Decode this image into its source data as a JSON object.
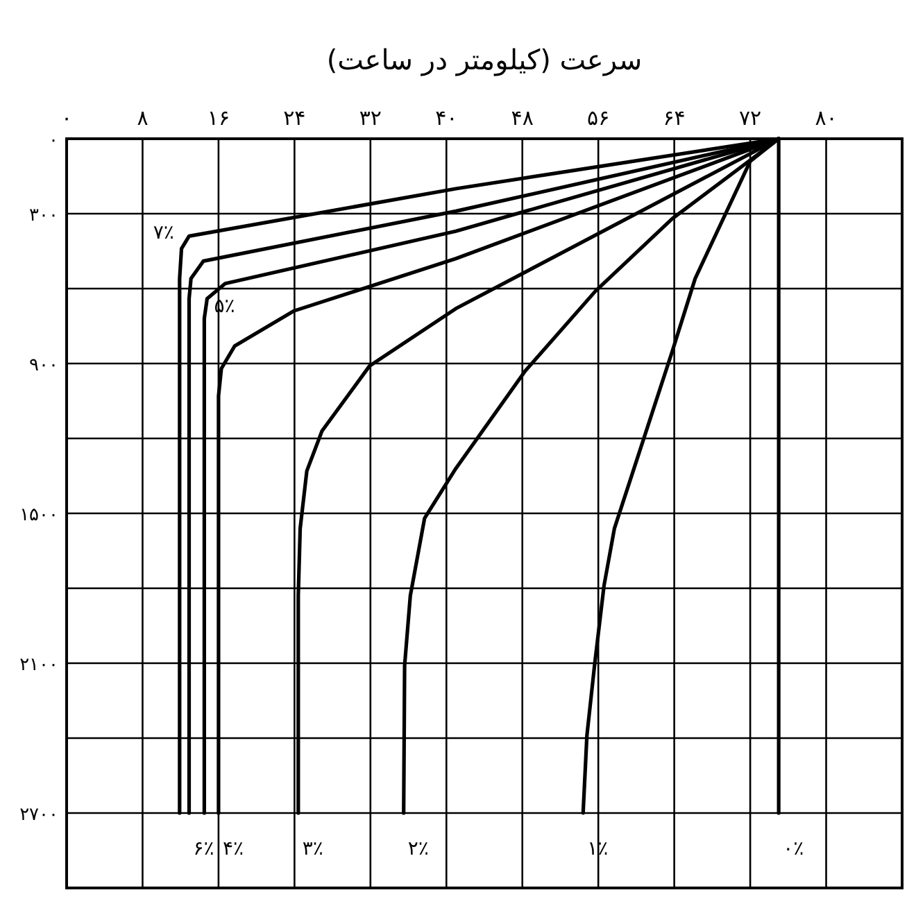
{
  "chart_data": {
    "type": "line",
    "xlabel": "سرعت (کیلومتر در ساعت)",
    "xlim": [
      0,
      88
    ],
    "ylim": [
      3000,
      0
    ],
    "xticks": [
      {
        "value": 0,
        "label": "۰"
      },
      {
        "value": 8,
        "label": "۸"
      },
      {
        "value": 16,
        "label": "۱۶"
      },
      {
        "value": 24,
        "label": "۲۴"
      },
      {
        "value": 32,
        "label": "۳۲"
      },
      {
        "value": 40,
        "label": "۴۰"
      },
      {
        "value": 48,
        "label": "۴۸"
      },
      {
        "value": 56,
        "label": "۵۶"
      },
      {
        "value": 64,
        "label": "۶۴"
      },
      {
        "value": 72,
        "label": "۷۲"
      },
      {
        "value": 80,
        "label": "۸۰"
      },
      {
        "value": 88,
        "label": null
      }
    ],
    "yticks": [
      {
        "value": 0,
        "label": "۰"
      },
      {
        "value": 300,
        "label": "۳۰۰"
      },
      {
        "value": 600,
        "label": null
      },
      {
        "value": 900,
        "label": "۹۰۰"
      },
      {
        "value": 1200,
        "label": null
      },
      {
        "value": 1500,
        "label": "۱۵۰۰"
      },
      {
        "value": 1800,
        "label": null
      },
      {
        "value": 2100,
        "label": "۲۱۰۰"
      },
      {
        "value": 2400,
        "label": null
      },
      {
        "value": 2700,
        "label": "۲۷۰۰"
      },
      {
        "value": 3000,
        "label": null
      }
    ],
    "grid": true,
    "line_style": "solid",
    "series": [
      {
        "name": "۰٪",
        "color": "#000000",
        "x": [
          75,
          75
        ],
        "values": [
          0,
          2700
        ]
      },
      {
        "name": "۱٪",
        "color": "#000000",
        "x": [
          75,
          72,
          66.2,
          63.8,
          57.7,
          56.6,
          55.6,
          54.8,
          54.4
        ],
        "values": [
          0,
          90,
          560,
          850,
          1560,
          1790,
          2110,
          2390,
          2700
        ]
      },
      {
        "name": "۲٪",
        "color": "#000000",
        "x": [
          75,
          63.8,
          55.7,
          48.3,
          41,
          37.7,
          36.2,
          35.6,
          35.5
        ],
        "values": [
          0,
          320,
          610,
          930,
          1320,
          1520,
          1830,
          2110,
          2700
        ]
      },
      {
        "name": "۳٪",
        "color": "#000000",
        "x": [
          75,
          41,
          31.9,
          26.9,
          25.3,
          24.6,
          24.4,
          24.4
        ],
        "values": [
          0,
          680,
          910,
          1170,
          1330,
          1560,
          1830,
          2700
        ]
      },
      {
        "name": "۴٪",
        "color": "#000000",
        "x": [
          75,
          41,
          23.9,
          17.7,
          16.3,
          16,
          16
        ],
        "values": [
          0,
          480,
          690,
          830,
          920,
          1030,
          2700
        ]
      },
      {
        "name": "۵٪",
        "color": "#000000",
        "x": [
          75,
          41,
          16.7,
          14.8,
          14.5,
          14.5
        ],
        "values": [
          0,
          370,
          580,
          640,
          720,
          2700
        ]
      },
      {
        "name": "۶٪",
        "color": "#000000",
        "x": [
          75,
          41,
          14.4,
          13.1,
          12.9,
          12.9
        ],
        "values": [
          0,
          290,
          490,
          560,
          640,
          2700
        ]
      },
      {
        "name": "۷٪",
        "color": "#000000",
        "x": [
          75,
          41,
          12.9,
          12.1,
          11.9,
          11.9
        ],
        "values": [
          0,
          200,
          390,
          440,
          560,
          2700
        ]
      }
    ]
  }
}
